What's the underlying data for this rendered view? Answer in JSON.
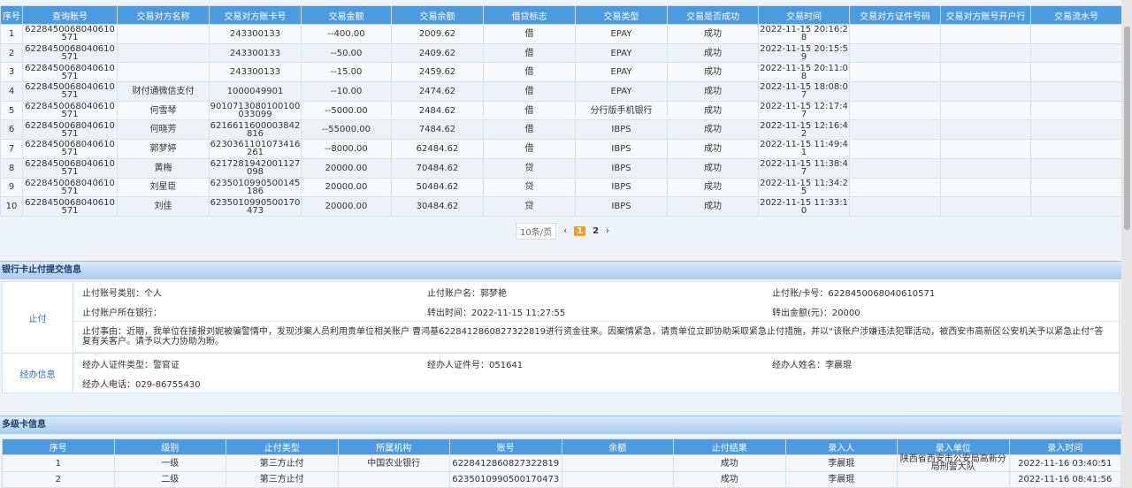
{
  "transactions": {
    "columns": [
      "序号",
      "查询账号",
      "交易对方名称",
      "交易对方账卡号",
      "交易金额",
      "交易余额",
      "借贷标志",
      "交易类型",
      "交易是否成功",
      "交易时间",
      "交易对方证件号码",
      "交易对方账号开户行",
      "交易流水号"
    ],
    "rows": [
      [
        "1",
        "6228450068040610571",
        "",
        "243300133",
        "--400.00",
        "2009.62",
        "借",
        "EPAY",
        "成功",
        "2022-11-15 20:16:28",
        "",
        "",
        ""
      ],
      [
        "2",
        "6228450068040610571",
        "",
        "243300133",
        "--50.00",
        "2409.62",
        "借",
        "EPAY",
        "成功",
        "2022-11-15 20:15:59",
        "",
        "",
        ""
      ],
      [
        "3",
        "6228450068040610571",
        "",
        "243300133",
        "--15.00",
        "2459.62",
        "借",
        "EPAY",
        "成功",
        "2022-11-15 20:11:08",
        "",
        "",
        ""
      ],
      [
        "4",
        "6228450068040610571",
        "财付通微信支付",
        "1000049901",
        "--10.00",
        "2474.62",
        "借",
        "EPAY",
        "成功",
        "2022-11-15 18:08:07",
        "",
        "",
        ""
      ],
      [
        "5",
        "6228450068040610571",
        "何雪琴",
        "9010713080100100033099",
        "--5000.00",
        "2484.62",
        "借",
        "分行版手机银行",
        "成功",
        "2022-11-15 12:17:47",
        "",
        "",
        ""
      ],
      [
        "6",
        "6228450068040610571",
        "何晓芳",
        "6216611600003842816",
        "--55000.00",
        "7484.62",
        "借",
        "IBPS",
        "成功",
        "2022-11-15 12:16:42",
        "",
        "",
        ""
      ],
      [
        "7",
        "6228450068040610571",
        "郭梦婷",
        "6230361101073416261",
        "--8000.00",
        "62484.62",
        "借",
        "IBPS",
        "成功",
        "2022-11-15 11:49:41",
        "",
        "",
        ""
      ],
      [
        "8",
        "6228450068040610571",
        "黄梅",
        "6217281942001127098",
        "20000.00",
        "70484.62",
        "贷",
        "IBPS",
        "成功",
        "2022-11-15 11:38:47",
        "",
        "",
        ""
      ],
      [
        "9",
        "6228450068040610571",
        "刘星臣",
        "6235010990500145186",
        "20000.00",
        "50484.62",
        "贷",
        "IBPS",
        "成功",
        "2022-11-15 11:34:25",
        "",
        "",
        ""
      ],
      [
        "10",
        "6228450068040610571",
        "刘佳",
        "6235010990500170473",
        "20000.00",
        "30484.62",
        "贷",
        "IBPS",
        "成功",
        "2022-11-15 11:33:10",
        "",
        "",
        ""
      ]
    ]
  },
  "pager": {
    "page_size": "10条/页",
    "current": "1",
    "next_page": "2",
    "prev_icon": "‹",
    "next_icon": "›"
  },
  "stop_section": {
    "title": "银行卡止付提交信息",
    "label_stop": "止付",
    "label_handler": "经办信息",
    "account_type": "止付账号类别：个人",
    "account_name": "止付账户名：郭梦艳",
    "card_no": "止付账/卡号：6228450068040610571",
    "bank": "止付账户所在银行：",
    "transfer_time": "转出时间：2022-11-15 11:27:55",
    "amount": "转出金额(元)：20000",
    "reason": "止付事由：近期，我单位在接报刘妮被骗警情中，发现涉案人员利用贵单位相关账户 曹鸿基6228412860827322819进行资金往来。因案情紧急，请贵单位立即协助采取紧急止付措施，并以“该账户涉嫌违法犯罪活动，被西安市高新区公安机关予以紧急止付”答复有关客户。请予以大力协助为盼。",
    "id_type": "经办人证件类型：警官证",
    "id_no": "经办人证件号：051641",
    "name": "经办人姓名：李晨琨",
    "phone": "经办人电话：029-86755430"
  },
  "multi_section": {
    "title": "多级卡信息",
    "columns": [
      "序号",
      "级别",
      "止付类型",
      "所属机构",
      "账号",
      "余额",
      "止付结果",
      "录入人",
      "录入单位",
      "录入时间"
    ],
    "rows": [
      [
        "1",
        "一级",
        "第三方止付",
        "中国农业银行",
        "6228412860827322819",
        "",
        "成功",
        "李晨琨",
        "陕西省西安市公安局高新分局刑警大队",
        "2022-11-16 03:40:51"
      ],
      [
        "2",
        "二级",
        "第三方止付",
        "",
        "6235010990500170473",
        "",
        "成功",
        "李晨琨",
        "",
        "2022-11-16 08:41:56"
      ]
    ]
  }
}
